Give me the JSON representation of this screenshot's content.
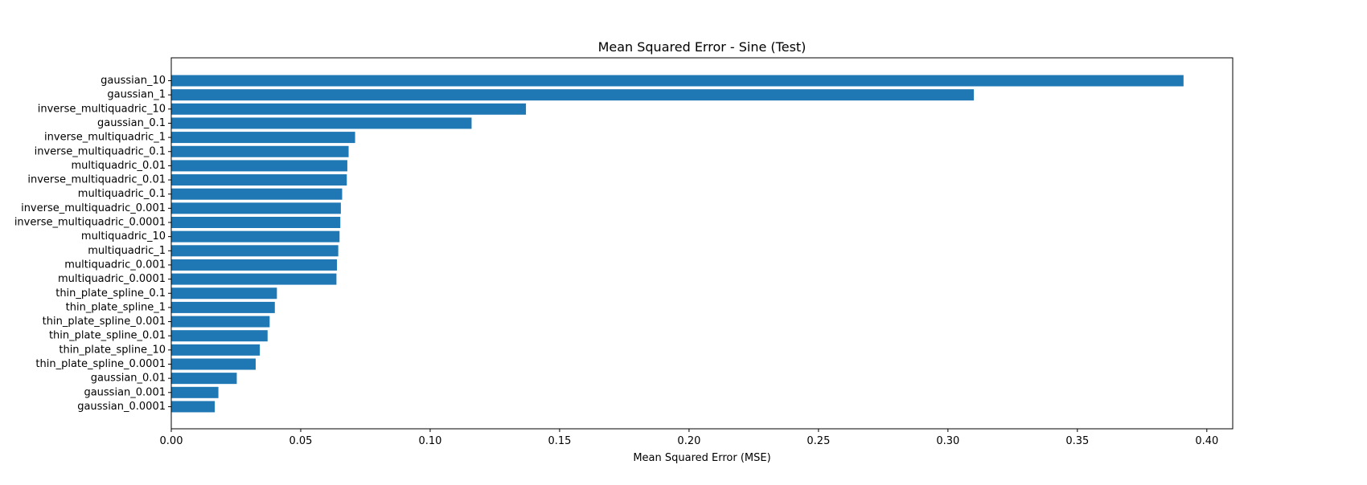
{
  "chart_data": {
    "type": "bar",
    "orientation": "horizontal",
    "title": "Mean Squared Error - Sine (Test)",
    "xlabel": "Mean Squared Error (MSE)",
    "ylabel": "",
    "xlim": [
      0,
      0.41
    ],
    "xticks": [
      0.0,
      0.05,
      0.1,
      0.15,
      0.2,
      0.25,
      0.3,
      0.35,
      0.4
    ],
    "xtick_labels": [
      "0.00",
      "0.05",
      "0.10",
      "0.15",
      "0.20",
      "0.25",
      "0.30",
      "0.35",
      "0.40"
    ],
    "grid": false,
    "legend": "none",
    "bar_color": "#1f77b4",
    "categories": [
      "gaussian_10",
      "gaussian_1",
      "inverse_multiquadric_10",
      "gaussian_0.1",
      "inverse_multiquadric_1",
      "inverse_multiquadric_0.1",
      "multiquadric_0.01",
      "inverse_multiquadric_0.01",
      "multiquadric_0.1",
      "inverse_multiquadric_0.001",
      "inverse_multiquadric_0.0001",
      "multiquadric_10",
      "multiquadric_1",
      "multiquadric_0.001",
      "multiquadric_0.0001",
      "thin_plate_spline_0.1",
      "thin_plate_spline_1",
      "thin_plate_spline_0.001",
      "thin_plate_spline_0.01",
      "thin_plate_spline_10",
      "thin_plate_spline_0.0001",
      "gaussian_0.01",
      "gaussian_0.001",
      "gaussian_0.0001"
    ],
    "values": [
      0.391,
      0.31,
      0.137,
      0.116,
      0.071,
      0.0685,
      0.068,
      0.0678,
      0.066,
      0.0655,
      0.0653,
      0.065,
      0.0645,
      0.064,
      0.0638,
      0.0408,
      0.04,
      0.038,
      0.0372,
      0.0342,
      0.0326,
      0.0253,
      0.0182,
      0.0168
    ]
  }
}
